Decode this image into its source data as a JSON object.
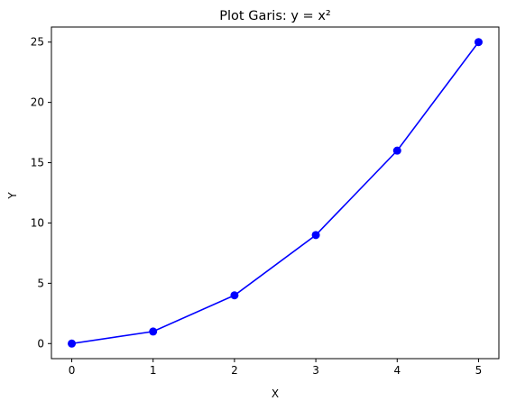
{
  "chart_data": {
    "type": "line",
    "title": "Plot Garis: y = x²",
    "xlabel": "X",
    "ylabel": "Y",
    "x": [
      0,
      1,
      2,
      3,
      4,
      5
    ],
    "series": [
      {
        "values": [
          0,
          1,
          4,
          9,
          16,
          25
        ],
        "color": "#0000ff",
        "marker": "circle"
      }
    ],
    "xlim": [
      -0.25,
      5.25
    ],
    "ylim": [
      -1.25,
      26.25
    ],
    "xticks": [
      0,
      1,
      2,
      3,
      4,
      5
    ],
    "yticks": [
      0,
      5,
      10,
      15,
      20,
      25
    ],
    "grid": false,
    "legend": "none"
  }
}
